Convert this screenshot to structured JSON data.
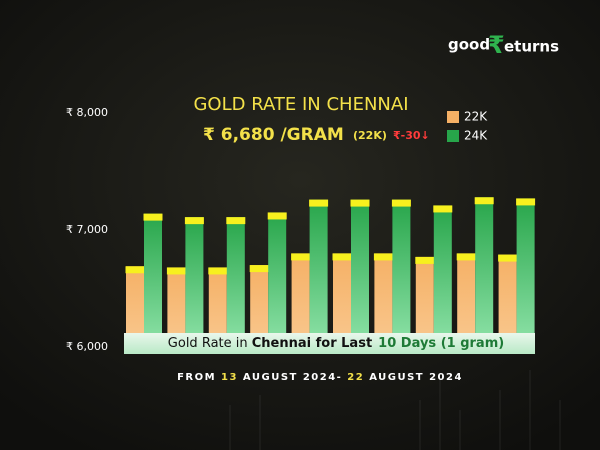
{
  "logo": [
    "good",
    "₹",
    "eturns"
  ],
  "chart_data": {
    "type": "bar",
    "title": "GOLD RATE IN CHENNAI",
    "price": "₹ 6,680 /GRAM",
    "price_karat": "(22K)",
    "change": "₹-30↓",
    "series": [
      {
        "name": "22K",
        "color": "#f5b065",
        "values": [
          6690,
          6680,
          6680,
          6700,
          6800,
          6800,
          6800,
          6770,
          6800,
          6790
        ]
      },
      {
        "name": "24K",
        "color": "#27a54a",
        "values": [
          7140,
          7110,
          7110,
          7150,
          7260,
          7260,
          7260,
          7210,
          7280,
          7270
        ]
      }
    ],
    "ylim": [
      6000,
      8000
    ],
    "yticks": [
      {
        "value": 6000,
        "label": "₹ 6,000"
      },
      {
        "value": 7000,
        "label": "₹ 7,000"
      },
      {
        "value": 8000,
        "label": "₹ 8,000"
      }
    ],
    "banner": [
      "Gold Rate in ",
      "Chennai for Last",
      "10 Days (1 gram)"
    ],
    "footer": [
      "FROM ",
      "13",
      " AUGUST 2024- ",
      "22",
      " AUGUST 2024"
    ]
  }
}
